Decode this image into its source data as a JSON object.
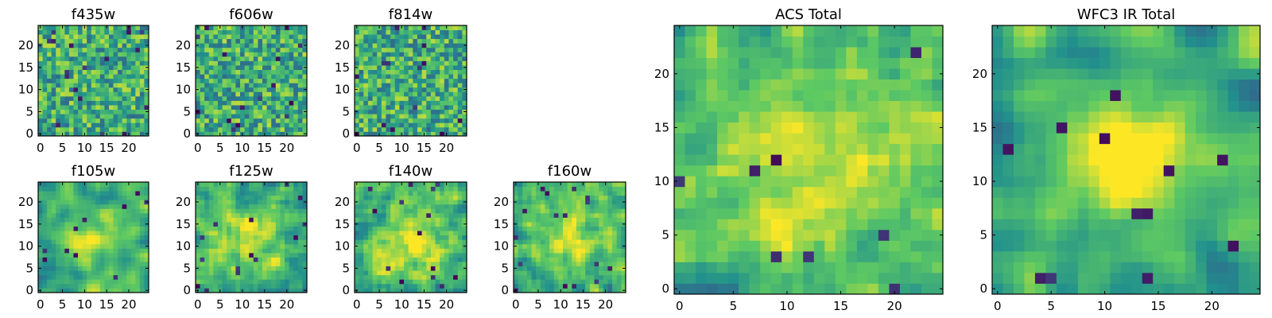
{
  "figure": {
    "colormap": "viridis",
    "colormap_stops": [
      "#440154",
      "#3b528b",
      "#21908d",
      "#5dc963",
      "#fde725"
    ]
  },
  "chart_data": [
    {
      "type": "heatmap",
      "title": "f435w",
      "grid": [
        25,
        25
      ],
      "xlim": [
        0,
        24
      ],
      "ylim": [
        0,
        24
      ],
      "x_ticks": [
        "0",
        "5",
        "10",
        "15",
        "20"
      ],
      "y_ticks": [
        "0",
        "5",
        "10",
        "15",
        "20"
      ],
      "value_range": [
        0,
        1
      ],
      "pattern": "noise",
      "seed": 11,
      "smooth": 0,
      "blob": null,
      "dark_cells": 18
    },
    {
      "type": "heatmap",
      "title": "f606w",
      "grid": [
        25,
        25
      ],
      "xlim": [
        0,
        24
      ],
      "ylim": [
        0,
        24
      ],
      "x_ticks": [
        "0",
        "5",
        "10",
        "15",
        "20"
      ],
      "y_ticks": [
        "0",
        "5",
        "10",
        "15",
        "20"
      ],
      "value_range": [
        0,
        1
      ],
      "pattern": "noise",
      "seed": 23,
      "smooth": 0,
      "blob": null,
      "dark_cells": 16
    },
    {
      "type": "heatmap",
      "title": "f814w",
      "grid": [
        25,
        25
      ],
      "xlim": [
        0,
        24
      ],
      "ylim": [
        0,
        24
      ],
      "x_ticks": [
        "0",
        "5",
        "10",
        "15",
        "20"
      ],
      "y_ticks": [
        "0",
        "5",
        "10",
        "15",
        "20"
      ],
      "value_range": [
        0,
        1
      ],
      "pattern": "noise",
      "seed": 37,
      "smooth": 0,
      "blob": null,
      "dark_cells": 14
    },
    {
      "type": "heatmap",
      "title": "f105w",
      "grid": [
        25,
        25
      ],
      "xlim": [
        0,
        24
      ],
      "ylim": [
        0,
        24
      ],
      "x_ticks": [
        "0",
        "5",
        "10",
        "15",
        "20"
      ],
      "y_ticks": [
        "0",
        "5",
        "10",
        "15",
        "20"
      ],
      "value_range": [
        0,
        1
      ],
      "pattern": "smooth",
      "seed": 41,
      "smooth": 2,
      "blob": {
        "cx": 12,
        "cy": 11,
        "r": 7,
        "amp": 0.35
      },
      "dark_cells": 10
    },
    {
      "type": "heatmap",
      "title": "f125w",
      "grid": [
        25,
        25
      ],
      "xlim": [
        0,
        24
      ],
      "ylim": [
        0,
        24
      ],
      "x_ticks": [
        "0",
        "5",
        "10",
        "15",
        "20"
      ],
      "y_ticks": [
        "0",
        "5",
        "10",
        "15",
        "20"
      ],
      "value_range": [
        0,
        1
      ],
      "pattern": "smooth",
      "seed": 53,
      "smooth": 1,
      "blob": {
        "cx": 12,
        "cy": 12,
        "r": 7,
        "amp": 0.25
      },
      "dark_cells": 14
    },
    {
      "type": "heatmap",
      "title": "f140w",
      "grid": [
        25,
        25
      ],
      "xlim": [
        0,
        24
      ],
      "ylim": [
        0,
        24
      ],
      "x_ticks": [
        "0",
        "5",
        "10",
        "15",
        "20"
      ],
      "y_ticks": [
        "0",
        "5",
        "10",
        "15",
        "20"
      ],
      "value_range": [
        0,
        1
      ],
      "pattern": "smooth",
      "seed": 67,
      "smooth": 1,
      "blob": {
        "cx": 12,
        "cy": 11,
        "r": 8,
        "amp": 0.3
      },
      "dark_cells": 14
    },
    {
      "type": "heatmap",
      "title": "f160w",
      "grid": [
        25,
        25
      ],
      "xlim": [
        0,
        24
      ],
      "ylim": [
        0,
        24
      ],
      "x_ticks": [
        "0",
        "5",
        "10",
        "15",
        "20"
      ],
      "y_ticks": [
        "0",
        "5",
        "10",
        "15",
        "20"
      ],
      "value_range": [
        0,
        1
      ],
      "pattern": "smooth",
      "seed": 79,
      "smooth": 1,
      "blob": {
        "cx": 12,
        "cy": 12,
        "r": 7,
        "amp": 0.3
      },
      "dark_cells": 16
    },
    {
      "type": "heatmap",
      "title": "ACS Total",
      "grid": [
        25,
        25
      ],
      "xlim": [
        0,
        24
      ],
      "ylim": [
        0,
        24
      ],
      "x_ticks": [
        "0",
        "5",
        "10",
        "15",
        "20"
      ],
      "y_ticks": [
        "0",
        "5",
        "10",
        "15",
        "20"
      ],
      "value_range": [
        0,
        1
      ],
      "pattern": "smooth",
      "seed": 97,
      "smooth": 1,
      "blob": {
        "cx": 12,
        "cy": 12,
        "r": 10,
        "amp": 0.2
      },
      "dark_cells": 8
    },
    {
      "type": "heatmap",
      "title": "WFC3 IR Total",
      "grid": [
        25,
        25
      ],
      "xlim": [
        0,
        24
      ],
      "ylim": [
        0,
        24
      ],
      "x_ticks": [
        "0",
        "5",
        "10",
        "15",
        "20"
      ],
      "y_ticks": [
        "0",
        "5",
        "10",
        "15",
        "20"
      ],
      "value_range": [
        0,
        1
      ],
      "pattern": "smooth",
      "seed": 113,
      "smooth": 2,
      "blob": {
        "cx": 12,
        "cy": 12,
        "r": 6,
        "amp": 0.45
      },
      "dark_cells": 12
    }
  ]
}
